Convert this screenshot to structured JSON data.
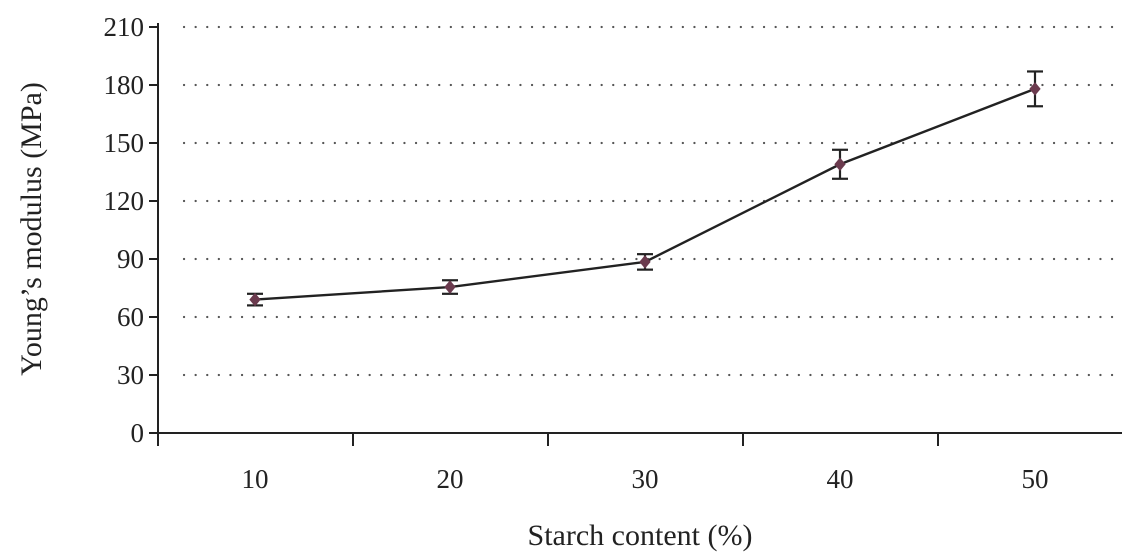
{
  "chart_data": {
    "type": "line",
    "xlabel": "Starch content (%)",
    "ylabel": "Young’s modulus (MPa)",
    "categories": [
      "10",
      "20",
      "30",
      "40",
      "50"
    ],
    "ylim": [
      0,
      210
    ],
    "yticks": [
      0,
      30,
      60,
      90,
      120,
      150,
      180,
      210
    ],
    "grid": true,
    "series": [
      {
        "values": [
          69,
          75.5,
          88.5,
          139,
          178
        ],
        "errors": [
          3,
          3.5,
          4,
          7.5,
          9
        ],
        "color": "#6b3b4e",
        "line_color": "#222222"
      }
    ]
  }
}
